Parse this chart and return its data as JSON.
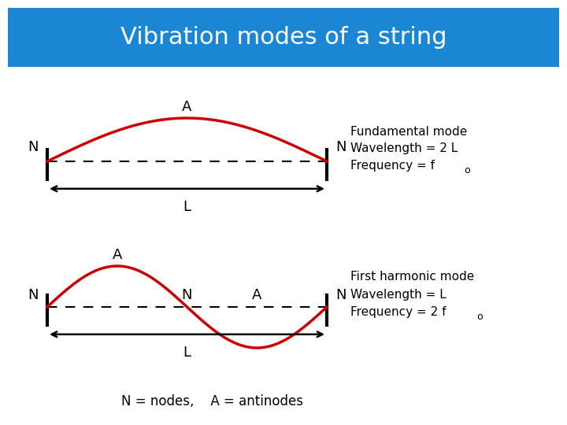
{
  "title": "Vibration modes of a string",
  "title_bg": "#1a86d4",
  "title_color": "white",
  "bg_color": "white",
  "wave_color": "#cc0000",
  "text_color": "black",
  "mode1": {
    "label_A": "A",
    "label_N_left": "N",
    "label_N_right": "N",
    "label_L": "L",
    "desc_line1": "Fundamental mode",
    "desc_line2": "Wavelength = 2 L",
    "desc_line3_main": "Frequency = f",
    "desc_line3_sub": "o"
  },
  "mode2": {
    "label_A_left": "A",
    "label_A_right": "A",
    "label_N_left": "N",
    "label_N_mid": "N",
    "label_N_right": "N",
    "label_L": "L",
    "desc_line1": "First harmonic mode",
    "desc_line2": "Wavelength = L",
    "desc_line3_main": "Frequency = 2 f",
    "desc_line3_sub": "o"
  },
  "footnote": "N = nodes,    A = antinodes",
  "title_fontsize": 22,
  "label_fontsize": 13,
  "desc_fontsize": 11,
  "footnote_fontsize": 12
}
